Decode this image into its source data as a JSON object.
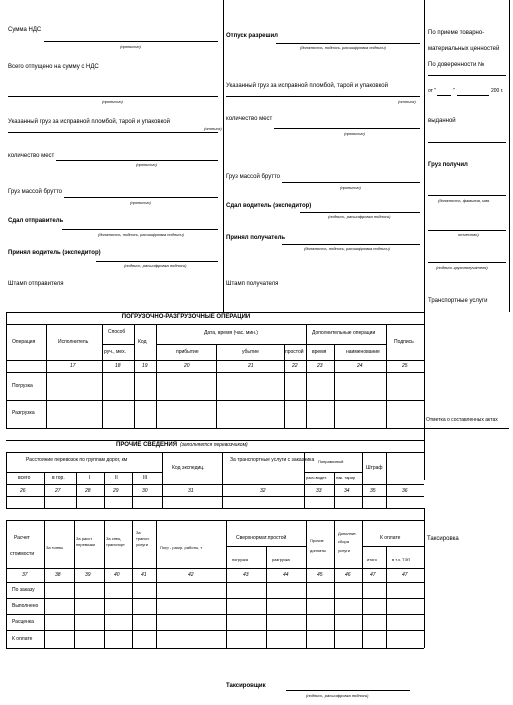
{
  "top": {
    "col1": {
      "vat_sum": "Сумма НДС",
      "prop1": "(прописью)",
      "total_released": "Всего отпущено на сумму с НДС",
      "prop2": "(прописью)",
      "cargo_sealed": "Указанный груз за исправной пломбой, тарой и упаковкой",
      "oттиск": "(оттиск)",
      "places_count": "количество мест",
      "prop3": "(прописью)",
      "gross_mass": "Груз массой брутто",
      "prop4": "(прописью)",
      "handed_by": "Сдал отправитель",
      "sig1": "(должность, подпись, расшифровка подписи)",
      "accepted_driver": "Принял водитель (экспедитор)",
      "sig2": "(подпись, расшифровка подписи)",
      "shipper_stamp": "Штамп отправителя"
    },
    "col2": {
      "release_allowed": "Отпуск разрешил",
      "sig3": "(должность, подпись, расшифровка подписи)",
      "cargo_sealed2": "Указанный груз за исправной пломбой, тарой и упаковкой",
      "oттиск2": "(оттиск)",
      "places_count2": "количество мест",
      "prop5": "(прописью)",
      "gross_mass2": "Груз массой брутто",
      "prop6": "(прописью)",
      "handed_driver": "Сдал водитель (экспедитор)",
      "sig4": "(подпись, расшифровка подписи)",
      "accepted_receiver": "Принял получатель",
      "sig5": "(должность, подпись, расшифровка подписи)",
      "receiver_stamp": "Штамп получателя"
    },
    "col3": {
      "by_letter": "По приеме товарно-",
      "material": "материальных ценностей",
      "by_proxy": "По доверенности №",
      "from": "от \"",
      "quote2": "\"",
      "year": "200 г.",
      "issued": "выданной",
      "cargo_receiver": "Груз получил",
      "pos_sign": "(должность, фамилия, имя",
      "otchestvo": "отчество)",
      "sign_receiver": "(подпись грузополучателя)",
      "transport_services": "Транспортные услуги"
    }
  },
  "loading": {
    "title": "ПОГРУЗОЧНО-РАЗГРУЗОЧНЫЕ ОПЕРАЦИИ",
    "col_operation": "Операция",
    "col_executor": "Исполнитель",
    "col_method": "Способ",
    "col_method_sub": "руч., мех.",
    "col_code": "Код",
    "col_datetime": "Дата, время (час. мин.)",
    "col_arrival": "прибытие",
    "col_departure": "убытие",
    "col_idle": "простой",
    "col_extra_ops": "Дополнительные операции",
    "col_time": "время",
    "col_name": "наименование",
    "col_signature": "Подпись",
    "nums": [
      "17",
      "18",
      "19",
      "20",
      "21",
      "22",
      "23",
      "24",
      "25"
    ],
    "row_loading": "Погрузка",
    "row_unloading": "Разгрузка",
    "mark_acts": "Отметка о составленных актах"
  },
  "other": {
    "title": "ПРОЧИЕ СВЕДЕНИЯ",
    "subtitle": "(заполняется перевозчиком)",
    "distance_groups": "Расстояние перевозок по группам дорог, км",
    "total": "всего",
    "in_city": "в гор.",
    "g1": "I",
    "g2": "II",
    "g3": "III",
    "expedition_code": "Код экспедиц.",
    "transport_services_owner": "За транспортные услуги с заказчика",
    "fine": "Штраф",
    "fine_labels": "Поправочный",
    "fine_sub1": "расч.водит.",
    "fine_sub2": "нак. тарир",
    "nums": [
      "26",
      "27",
      "28",
      "29",
      "30",
      "31",
      "32",
      "33",
      "34",
      "35",
      "36"
    ]
  },
  "calc": {
    "col_calc": "Расчет",
    "col_cost": "стоимости",
    "col_ton": "За тонны",
    "col_transport_to": "За расст перевозки",
    "col_special": "За спец транспорт",
    "col_transport_svc": "За трансп. услуги",
    "col_loading": "Погр - разгр. работы, т",
    "col_overtime": "Сверхнормат.простой",
    "col_loading_sub": "погрузка",
    "col_unloading_sub": "разгрузка",
    "col_prochie": "Прочие доплаты",
    "col_extra_charge": "Дополнит. сбора услуги",
    "col_to_pay": "К оплате",
    "col_total": "итого",
    "col_incl_vat": "в т.ч. ТЭП",
    "nums": [
      "37",
      "38",
      "39",
      "40",
      "41",
      "42",
      "43",
      "44",
      "45",
      "46",
      "47"
    ],
    "rows": [
      "По заказу",
      "Выполнено",
      "Расценка",
      "К оплате"
    ],
    "taxation": "Таксировка"
  },
  "footer": {
    "taxator": "Таксировщик",
    "sig": "(подпись, расшифровка подписи)"
  }
}
